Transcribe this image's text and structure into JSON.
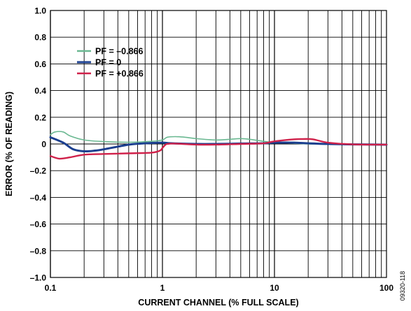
{
  "chart_data": {
    "type": "line",
    "xscale": "log",
    "xlim": [
      0.1,
      100
    ],
    "ylim": [
      -1.0,
      1.0
    ],
    "xlabel": "CURRENT CHANNEL (% FULL SCALE)",
    "ylabel": "ERROR (% OF READING)",
    "grid": true,
    "legend_position": "top-left",
    "x_ticks": [
      0.1,
      1,
      10,
      100
    ],
    "x_tick_labels": [
      "0.1",
      "1",
      "10",
      "100"
    ],
    "y_ticks": [
      1.0,
      0.8,
      0.6,
      0.4,
      0.2,
      0,
      -0.2,
      -0.4,
      -0.6,
      -0.8,
      -1.0
    ],
    "y_tick_labels": [
      "1.0",
      "0.8",
      "0.6",
      "0.4",
      "0.2",
      "0",
      "–0.2",
      "–0.4",
      "–0.6",
      "–0.8",
      "–1.0"
    ],
    "series": [
      {
        "name": "PF = –0.866",
        "color": "#6ab891",
        "x": [
          0.1,
          0.11,
          0.13,
          0.15,
          0.2,
          0.3,
          0.5,
          0.8,
          1.0,
          1.1,
          1.3,
          1.6,
          2,
          3,
          4,
          5,
          6,
          8,
          10,
          15,
          20,
          30,
          50,
          100
        ],
        "y": [
          0.07,
          0.09,
          0.09,
          0.06,
          0.03,
          0.018,
          0.013,
          0.02,
          0.03,
          0.05,
          0.055,
          0.05,
          0.04,
          0.03,
          0.035,
          0.04,
          0.035,
          0.02,
          0.01,
          0.005,
          0.0,
          -0.002,
          -0.005,
          -0.005
        ]
      },
      {
        "name": "PF = 0",
        "color": "#1b3f8f",
        "x": [
          0.1,
          0.13,
          0.16,
          0.2,
          0.25,
          0.3,
          0.4,
          0.5,
          0.7,
          1.0,
          1.2,
          2,
          3,
          5,
          8,
          10,
          15,
          20,
          30,
          50,
          100
        ],
        "y": [
          0.05,
          0.01,
          -0.04,
          -0.055,
          -0.05,
          -0.04,
          -0.02,
          -0.005,
          0.005,
          0.01,
          0.005,
          0.0,
          0.0,
          0.003,
          0.005,
          0.01,
          0.01,
          0.005,
          0.0,
          -0.003,
          -0.005
        ]
      },
      {
        "name": "PF = +0.866",
        "color": "#d0214a",
        "x": [
          0.1,
          0.12,
          0.15,
          0.2,
          0.3,
          0.5,
          0.8,
          0.95,
          1.0,
          1.05,
          1.1,
          1.3,
          2,
          3,
          5,
          8,
          10,
          15,
          18,
          22,
          30,
          50,
          100
        ],
        "y": [
          -0.09,
          -0.11,
          -0.1,
          -0.08,
          -0.075,
          -0.07,
          -0.065,
          -0.05,
          -0.03,
          -0.01,
          0.0,
          0.003,
          -0.005,
          -0.005,
          0.0,
          0.005,
          0.02,
          0.035,
          0.037,
          0.035,
          0.01,
          -0.003,
          -0.005
        ]
      }
    ]
  },
  "figure_id": "09320-118"
}
